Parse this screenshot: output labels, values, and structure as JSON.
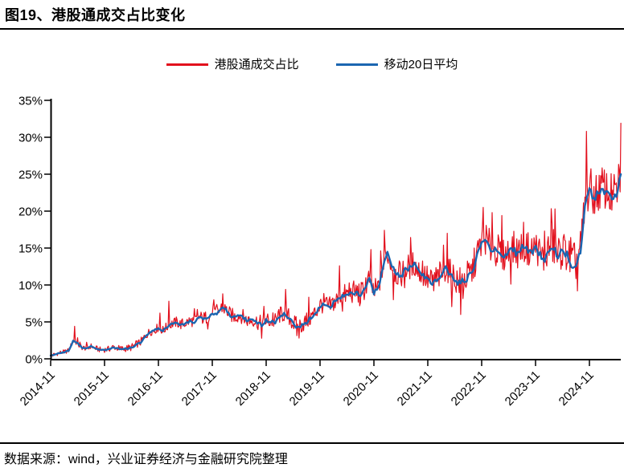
{
  "header": {
    "title": "图19、港股通成交占比变化"
  },
  "footer": {
    "text": "数据来源：wind，兴业证券经济与金融研究院整理"
  },
  "legend": {
    "items": [
      {
        "label": "港股通成交占比",
        "color": "#e2101d"
      },
      {
        "label": "移动20日平均",
        "color": "#1b66b1"
      }
    ]
  },
  "chart_data": {
    "type": "line",
    "title": "港股通成交占比变化",
    "xlabel": "",
    "ylabel": "",
    "grid": false,
    "legend_position": "top-center",
    "x_axis": {
      "start": "2014-11",
      "end": "2025-06",
      "frequency": "monthly",
      "tick_labels": [
        "2014-11",
        "2015-11",
        "2016-11",
        "2017-11",
        "2018-11",
        "2019-11",
        "2020-11",
        "2021-11",
        "2022-11",
        "2023-11",
        "2024-11"
      ],
      "tick_rotation_deg": -45
    },
    "y_axis": {
      "min": 0,
      "max": 35,
      "tick_step": 5,
      "unit": "%",
      "tick_labels": [
        "0%",
        "5%",
        "10%",
        "15%",
        "20%",
        "25%",
        "30%",
        "35%"
      ]
    },
    "series": [
      {
        "name": "港股通成交占比",
        "color": "#e2101d",
        "kind": "daily-volatile",
        "description": "每日港股通成交占比，围绕移动20日平均高频震荡，振幅随时间增大",
        "noise_amplitude_pct": [
          {
            "m": 0,
            "a": 0.25
          },
          {
            "m": 12,
            "a": 0.35
          },
          {
            "m": 24,
            "a": 0.55
          },
          {
            "m": 36,
            "a": 0.85
          },
          {
            "m": 48,
            "a": 1.0
          },
          {
            "m": 60,
            "a": 1.2
          },
          {
            "m": 72,
            "a": 1.5
          },
          {
            "m": 84,
            "a": 1.7
          },
          {
            "m": 96,
            "a": 2.0
          },
          {
            "m": 108,
            "a": 2.1
          },
          {
            "m": 120,
            "a": 2.6
          },
          {
            "m": 127,
            "a": 2.6
          }
        ],
        "notable_points": [
          {
            "month": "2015-04",
            "m": 5,
            "v": 4.4
          },
          {
            "month": "2016-11",
            "m": 24,
            "v": 6.2
          },
          {
            "month": "2017-01",
            "m": 26,
            "v": 7.8
          },
          {
            "month": "2017-11",
            "m": 36,
            "v": 8.0
          },
          {
            "month": "2018-01",
            "m": 38,
            "v": 8.8
          },
          {
            "month": "2019-03",
            "m": 52,
            "v": 9.4
          },
          {
            "month": "2019-06",
            "m": 55,
            "v": 2.8
          },
          {
            "month": "2020-03",
            "m": 64,
            "v": 12.6
          },
          {
            "month": "2020-10",
            "m": 71,
            "v": 14.8
          },
          {
            "month": "2021-01",
            "m": 74,
            "v": 17.4
          },
          {
            "month": "2021-03",
            "m": 76,
            "v": 8.0
          },
          {
            "month": "2022-03",
            "m": 88,
            "v": 17.0
          },
          {
            "month": "2022-06",
            "m": 91,
            "v": 6.0
          },
          {
            "month": "2022-11",
            "m": 96,
            "v": 20.5
          },
          {
            "month": "2023-01",
            "m": 98,
            "v": 19.8
          },
          {
            "month": "2023-08",
            "m": 105,
            "v": 18.5
          },
          {
            "month": "2024-03",
            "m": 112,
            "v": 20.3
          },
          {
            "month": "2024-08",
            "m": 117,
            "v": 9.2
          },
          {
            "month": "2024-10",
            "m": 119,
            "v": 30.8
          },
          {
            "month": "2025-06",
            "m": 127,
            "v": 31.9
          }
        ]
      },
      {
        "name": "移动20日平均",
        "color": "#1b66b1",
        "frequency": "monthly",
        "start": "2014-11",
        "values": [
          0.4,
          0.6,
          0.8,
          0.9,
          1.1,
          2.4,
          2.1,
          1.5,
          1.4,
          1.7,
          1.4,
          1.2,
          1.2,
          1.3,
          1.6,
          1.4,
          1.3,
          1.4,
          1.5,
          1.9,
          2.2,
          3.0,
          3.6,
          3.8,
          4.2,
          3.8,
          4.3,
          4.7,
          4.9,
          4.6,
          4.8,
          5.1,
          5.0,
          5.6,
          5.4,
          5.6,
          6.2,
          6.0,
          6.9,
          6.6,
          5.9,
          5.6,
          5.9,
          5.5,
          5.1,
          5.3,
          4.9,
          4.6,
          5.2,
          5.0,
          5.0,
          5.8,
          6.0,
          5.6,
          4.8,
          4.2,
          4.6,
          5.0,
          5.6,
          6.2,
          7.2,
          7.4,
          6.8,
          7.6,
          8.0,
          8.4,
          8.6,
          8.8,
          9.0,
          8.6,
          9.4,
          10.8,
          8.8,
          9.6,
          12.5,
          14.2,
          12.6,
          11.4,
          11.2,
          12.0,
          12.4,
          12.7,
          11.8,
          11.3,
          10.6,
          10.2,
          10.8,
          11.2,
          12.4,
          11.2,
          10.8,
          10.2,
          10.6,
          11.0,
          11.9,
          14.0,
          15.8,
          16.0,
          14.8,
          14.6,
          14.2,
          13.8,
          14.4,
          14.8,
          14.2,
          15.2,
          14.8,
          14.4,
          15.2,
          14.0,
          13.4,
          15.0,
          14.9,
          13.8,
          14.6,
          14.1,
          12.7,
          12.9,
          14.6,
          20.4,
          22.9,
          21.8,
          22.4,
          23.1,
          22.4,
          21.8,
          22.2,
          25.0
        ]
      }
    ]
  }
}
